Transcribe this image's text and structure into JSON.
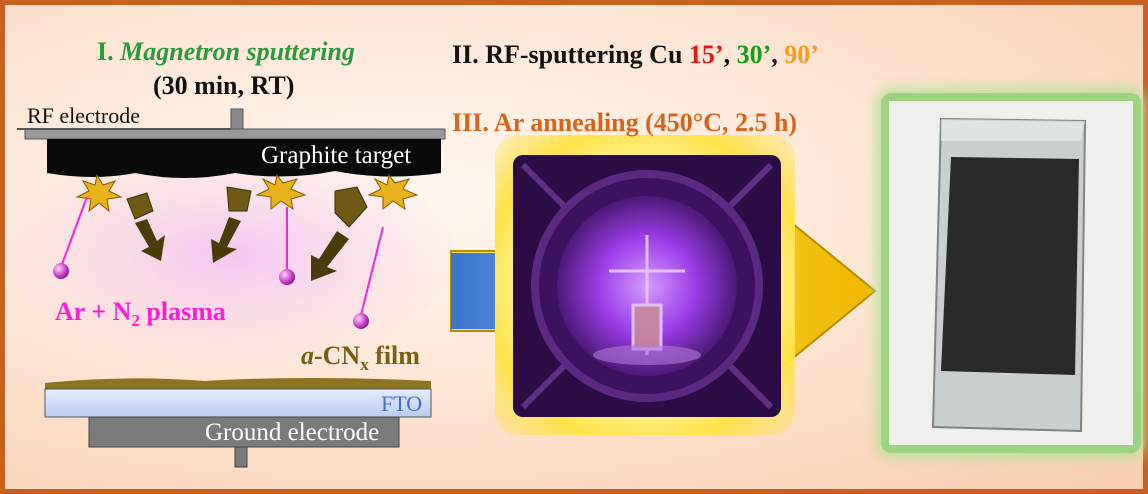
{
  "step1": {
    "prefix": "I. ",
    "title": "Magnetron sputtering",
    "conditions": "(30 min, RT)"
  },
  "step2": {
    "text": "II. RF-sputtering Cu ",
    "t1": "15’",
    "t2": "30’",
    "t3": "90’",
    "sep": ", ",
    "colors": {
      "t1": "#e01818",
      "t2": "#1a9e1a",
      "t3": "#f0a020"
    }
  },
  "step3": {
    "text": "III. Ar annealing (450°C, 2.5 h)"
  },
  "labels": {
    "rf_electrode": "RF electrode",
    "graphite_target": "Graphite target",
    "plasma_main": "Ar + N",
    "plasma_sub": "2",
    "plasma_suffix": " plasma",
    "film_italic": "a",
    "film_main": "-CN",
    "film_sub": "x",
    "film_suffix": " film",
    "fto": "FTO",
    "ground_electrode": "Ground electrode"
  },
  "colors": {
    "border": "#c8611f",
    "plasma": "#ff1cd4",
    "ar_atom": "#d050d0",
    "arrow_blue": "#3d79d0",
    "arrow_yellow": "#f4c400",
    "chamber_purple": "#8a2fd6"
  }
}
